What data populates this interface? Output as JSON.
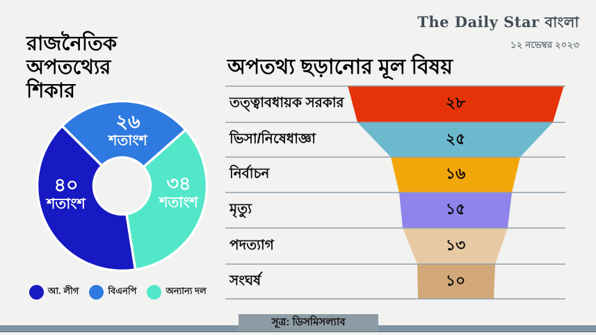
{
  "brand": {
    "logo": "The Daily Star বাংলা",
    "date": "১২ নভেম্বর ২০২৩"
  },
  "pie_title_lines": "রাজনৈতিক\nঅপতথ্যের\nশিকার",
  "source": "সূত্র: ডিসমিসল্যাব",
  "colors": {
    "background": "#f2f2f1",
    "separator_line": "#8fa0a9",
    "footer_bar": "#8093a0",
    "source_box": "#8d9ba4"
  },
  "chart_data": [
    {
      "type": "pie",
      "title": "রাজনৈতিক অপতথ্যের শিকার",
      "donut": true,
      "unit_word": "শতাংশ",
      "start_angle_deg": -45,
      "draw_indices": [
        1,
        2,
        0
      ],
      "slices": [
        {
          "label": "আ. লীগ",
          "value": 40,
          "value_bn": "৪০",
          "color": "#1719c2"
        },
        {
          "label": "বিএনপি",
          "value": 26,
          "value_bn": "২৬",
          "color": "#2e7ae0"
        },
        {
          "label": "অন্যান্য দল",
          "value": 34,
          "value_bn": "৩৪",
          "color": "#53e7c9"
        }
      ]
    },
    {
      "type": "funnel",
      "title": "অপতথ্য ছড়ানোর মূল বিষয়",
      "rows": [
        {
          "label": "তত্ত্বাবধায়ক সরকার",
          "value": 28,
          "value_bn": "২৮",
          "color": "#e63208"
        },
        {
          "label": "ভিসা/নিষেধাজ্ঞা",
          "value": 25,
          "value_bn": "২৫",
          "color": "#6cb9ce"
        },
        {
          "label": "নির্বাচন",
          "value": 16,
          "value_bn": "১৬",
          "color": "#f3a60a"
        },
        {
          "label": "মৃত্যু",
          "value": 15,
          "value_bn": "১৫",
          "color": "#9083ec"
        },
        {
          "label": "পদত্যাগ",
          "value": 13,
          "value_bn": "১৩",
          "color": "#e7c9a4"
        },
        {
          "label": "সংঘর্ষ",
          "value": 10,
          "value_bn": "১০",
          "color": "#d3a878"
        }
      ]
    }
  ]
}
